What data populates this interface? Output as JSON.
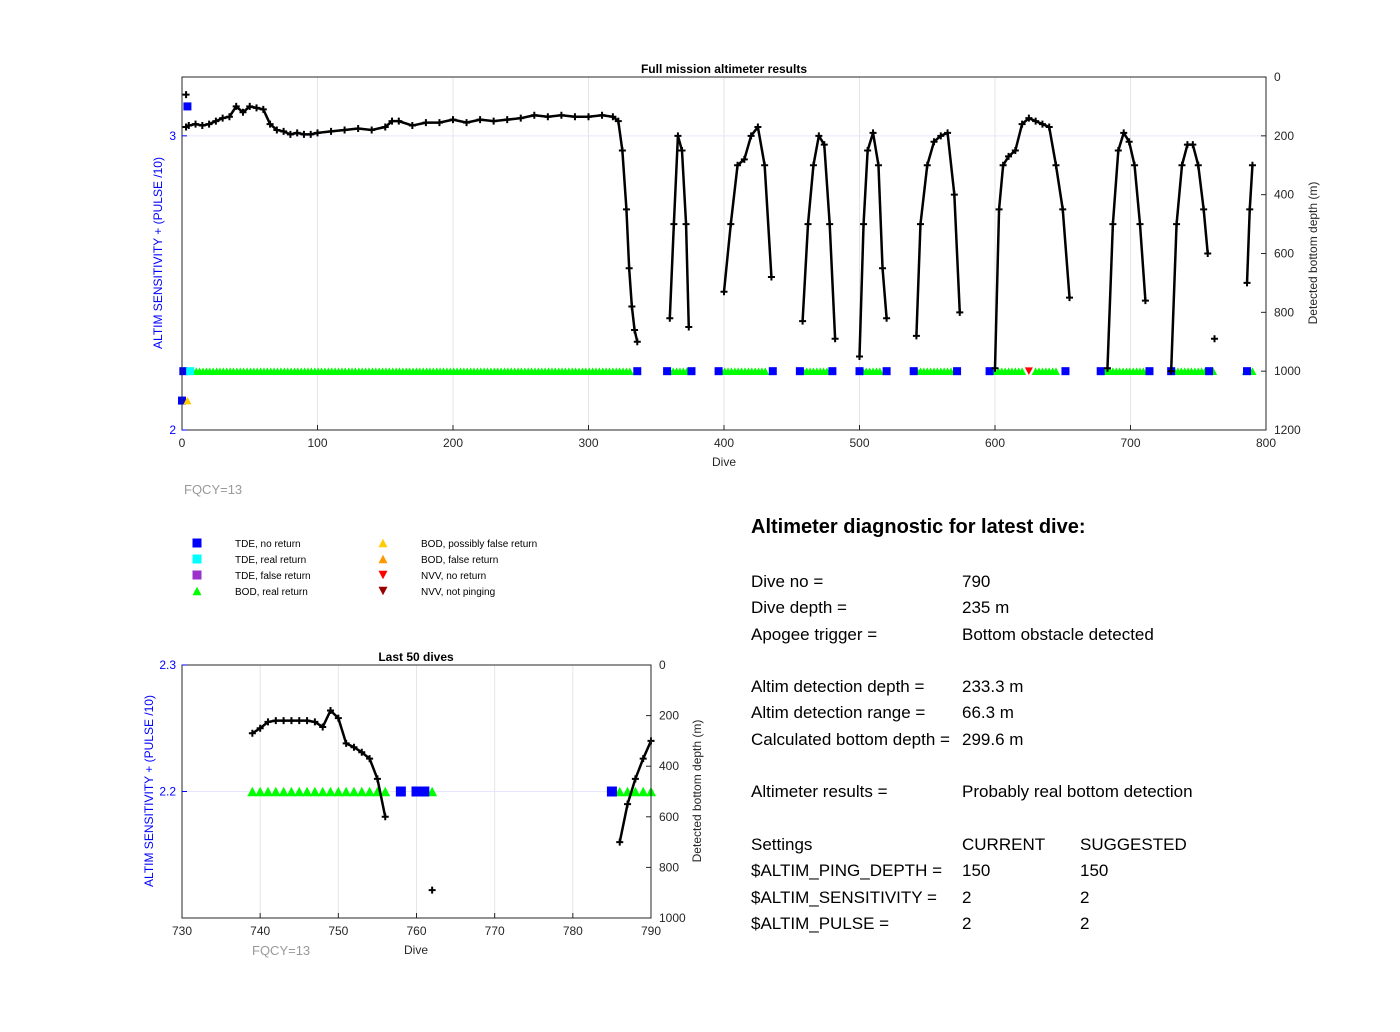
{
  "main_chart": {
    "title": "Full mission altimeter results",
    "xlabel": "Dive",
    "ylabel_left": "ALTIM SENSITIVITY + (PULSE /10)",
    "ylabel_right": "Detected bottom depth (m)",
    "fqcy_label": "FQCY=13"
  },
  "zoom_chart": {
    "title": "Last 50 dives",
    "xlabel": "Dive",
    "ylabel_left": "ALTIM SENSITIVITY + (PULSE /10)",
    "ylabel_right": "Detected bottom depth (m)",
    "fqcy_label": "FQCY=13"
  },
  "legend": [
    {
      "label": "TDE, no return",
      "marker": "square",
      "color": "#0000ff"
    },
    {
      "label": "TDE, real return",
      "marker": "square",
      "color": "#00ffff"
    },
    {
      "label": "TDE, false return",
      "marker": "square",
      "color": "#9933cc"
    },
    {
      "label": "BOD, real return",
      "marker": "triangle-up",
      "color": "#00ff00"
    },
    {
      "label": "BOD, possibly false return",
      "marker": "triangle-up",
      "color": "#ffcc00"
    },
    {
      "label": "BOD, false return",
      "marker": "triangle-up",
      "color": "#ff9900"
    },
    {
      "label": "NVV, no return",
      "marker": "triangle-down",
      "color": "#ff0000"
    },
    {
      "label": "NVV, not pinging",
      "marker": "triangle-down",
      "color": "#990000"
    }
  ],
  "diagnostic": {
    "title": "Altimeter diagnostic for latest dive:",
    "dive_no_label": "Dive no =",
    "dive_no": "790",
    "dive_depth_label": "Dive depth =",
    "dive_depth": "235 m",
    "apogee_label": "Apogee trigger =",
    "apogee": "Bottom obstacle detected",
    "det_depth_label": "Altim detection depth =",
    "det_depth": "233.3 m",
    "det_range_label": "Altim detection range =",
    "det_range": "66.3 m",
    "calc_depth_label": "Calculated bottom depth =",
    "calc_depth": "299.6 m",
    "results_label": "Altimeter results =",
    "results": "Probably real bottom detection",
    "settings_label": "Settings",
    "current_label": "CURRENT",
    "suggested_label": "SUGGESTED",
    "ping_label": "$ALTIM_PING_DEPTH =",
    "ping_current": "150",
    "ping_suggested": "150",
    "sens_label": "$ALTIM_SENSITIVITY =",
    "sens_current": "2",
    "sens_suggested": "2",
    "pulse_label": "$ALTIM_PULSE =",
    "pulse_current": "2",
    "pulse_suggested": "2"
  },
  "chart_data": [
    {
      "name": "Full mission altimeter results",
      "type": "scatter",
      "x_range": [
        0,
        800
      ],
      "x_ticks": [
        0,
        100,
        200,
        300,
        400,
        500,
        600,
        700,
        800
      ],
      "y_left_range": [
        2,
        3.2
      ],
      "y_left_ticks": [
        2,
        3
      ],
      "y_right_range": [
        1200,
        0
      ],
      "y_right_ticks": [
        0,
        200,
        400,
        600,
        800,
        1000,
        1200
      ],
      "grid": true,
      "bottom_depth_segments": [
        {
          "x": [
            3,
            5,
            10,
            15,
            20,
            25,
            30,
            35,
            40,
            45,
            50,
            55,
            60,
            65,
            70,
            75,
            80,
            85,
            90,
            95,
            100,
            110,
            120,
            130,
            140,
            150,
            155,
            160,
            170,
            180,
            190,
            200,
            210,
            220,
            230,
            240,
            250,
            260,
            270,
            280,
            290,
            300,
            310,
            318,
            322,
            325,
            328,
            330,
            332,
            334,
            336
          ],
          "y": [
            170,
            165,
            160,
            165,
            160,
            150,
            140,
            135,
            100,
            120,
            100,
            105,
            110,
            160,
            180,
            185,
            195,
            190,
            195,
            195,
            190,
            185,
            180,
            175,
            180,
            170,
            150,
            150,
            165,
            155,
            155,
            145,
            155,
            145,
            150,
            145,
            140,
            130,
            135,
            130,
            135,
            135,
            130,
            135,
            150,
            250,
            450,
            650,
            780,
            860,
            900
          ]
        },
        {
          "x": [
            360,
            363,
            366,
            369,
            372,
            374
          ],
          "y": [
            820,
            500,
            200,
            250,
            500,
            850
          ]
        },
        {
          "x": [
            400,
            405,
            410,
            415,
            420,
            425,
            430,
            435
          ],
          "y": [
            730,
            500,
            300,
            280,
            200,
            170,
            300,
            680
          ]
        },
        {
          "x": [
            458,
            462,
            466,
            470,
            474,
            478,
            482
          ],
          "y": [
            830,
            500,
            300,
            200,
            230,
            500,
            890
          ]
        },
        {
          "x": [
            500,
            503,
            506,
            510,
            514,
            517,
            520
          ],
          "y": [
            950,
            500,
            250,
            190,
            300,
            650,
            820
          ]
        },
        {
          "x": [
            542,
            545,
            550,
            555,
            560,
            565,
            570,
            574
          ],
          "y": [
            880,
            500,
            300,
            220,
            200,
            190,
            400,
            800
          ]
        },
        {
          "x": [
            600,
            603,
            606,
            610,
            615,
            620,
            625,
            630,
            635,
            640,
            645,
            650,
            655
          ],
          "y": [
            990,
            450,
            300,
            270,
            250,
            160,
            140,
            150,
            160,
            170,
            300,
            450,
            750
          ]
        },
        {
          "x": [
            683,
            687,
            691,
            695,
            699,
            703,
            707,
            711
          ],
          "y": [
            990,
            500,
            250,
            190,
            220,
            300,
            500,
            760
          ]
        },
        {
          "x": [
            730,
            734,
            738,
            742,
            746,
            750,
            754,
            757
          ],
          "y": [
            1000,
            500,
            300,
            230,
            230,
            300,
            450,
            600
          ]
        },
        {
          "x": [
            786,
            788,
            790
          ],
          "y": [
            700,
            450,
            300
          ]
        }
      ],
      "isolated_points": [
        {
          "x": 3,
          "y": 60
        },
        {
          "x": 762,
          "y": 890
        }
      ],
      "markers": [
        {
          "category": "BOD, real return",
          "x_ranges": [
            [
              8,
              332
            ],
            [
              360,
              376
            ],
            [
              398,
              432
            ],
            [
              456,
              478
            ],
            [
              500,
              515
            ],
            [
              540,
              568
            ],
            [
              600,
              622
            ],
            [
              630,
              645
            ],
            [
              682,
              710
            ],
            [
              730,
              755
            ],
            [
              761,
              763
            ],
            [
              785,
              790
            ]
          ],
          "y": 2.2
        },
        {
          "category": "TDE, no return",
          "x": [
            1,
            336,
            358,
            376,
            396,
            436,
            456,
            480,
            500,
            520,
            540,
            572,
            596,
            652,
            678,
            714,
            730,
            758,
            786
          ],
          "y": 2.2
        },
        {
          "category": "TDE, real return",
          "x": [
            6
          ],
          "y": 2.2
        },
        {
          "category": "TDE, no return",
          "x": [
            0,
            4
          ],
          "y": [
            2.1,
            3.1
          ]
        },
        {
          "category": "BOD, possibly false return",
          "x": [
            4
          ],
          "y": 2.1
        },
        {
          "category": "NVV, no return",
          "x": [
            625
          ],
          "y": 2.2
        }
      ]
    },
    {
      "name": "Last 50 dives",
      "type": "scatter",
      "x_range": [
        730,
        790
      ],
      "x_ticks": [
        730,
        740,
        750,
        760,
        770,
        780,
        790
      ],
      "y_left_range": [
        2.1,
        2.3
      ],
      "y_left_ticks": [
        2.2,
        2.3
      ],
      "y_right_range": [
        1000,
        0
      ],
      "y_right_ticks": [
        0,
        200,
        400,
        600,
        800,
        1000
      ],
      "grid": true,
      "bottom_depth_segments": [
        {
          "x": [
            739,
            740,
            741,
            742,
            743,
            744,
            745,
            746,
            747,
            748,
            749,
            750,
            751,
            752,
            753,
            754,
            755,
            756
          ],
          "y": [
            270,
            250,
            225,
            220,
            220,
            220,
            220,
            220,
            225,
            245,
            180,
            210,
            310,
            325,
            345,
            370,
            450,
            600
          ]
        },
        {
          "x": [
            786,
            787,
            788,
            789,
            790
          ],
          "y": [
            700,
            550,
            450,
            370,
            300
          ]
        }
      ],
      "isolated_points": [
        {
          "x": 762,
          "y": 890
        }
      ],
      "markers": [
        {
          "category": "BOD, real return",
          "x": [
            739,
            740,
            741,
            742,
            743,
            744,
            745,
            746,
            747,
            748,
            749,
            750,
            751,
            752,
            753,
            754,
            755,
            756,
            762,
            786,
            787,
            788,
            789,
            790
          ],
          "y": 2.2
        },
        {
          "category": "TDE, no return",
          "x": [
            758,
            760,
            761,
            785
          ],
          "y": 2.2
        }
      ]
    }
  ]
}
